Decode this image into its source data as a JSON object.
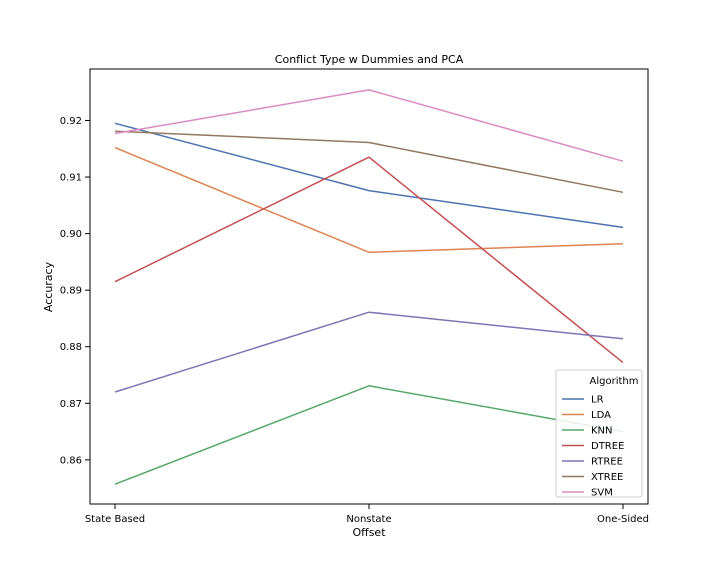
{
  "chart_data": {
    "type": "line",
    "title": "Conflict Type w Dummies and PCA",
    "xlabel": "Offset",
    "ylabel": "Accuracy",
    "categories": [
      "State Based",
      "Nonstate",
      "One-Sided"
    ],
    "ylim": [
      0.8522,
      0.9291
    ],
    "yticks": [
      0.86,
      0.87,
      0.88,
      0.89,
      0.9,
      0.91,
      0.92
    ],
    "ytick_labels": [
      "0.86",
      "0.87",
      "0.88",
      "0.89",
      "0.90",
      "0.91",
      "0.92"
    ],
    "grid": false,
    "legend": {
      "title": "Algorithm",
      "placement": "lower-right"
    },
    "series": [
      {
        "name": "LR",
        "color": "#4c72b0",
        "values": [
          0.9195,
          0.9076,
          0.9011
        ]
      },
      {
        "name": "LDA",
        "color": "#dd8452",
        "values": [
          0.9152,
          0.8967,
          0.8982
        ]
      },
      {
        "name": "KNN",
        "color": "#55a868",
        "values": [
          0.8557,
          0.8731,
          0.865
        ]
      },
      {
        "name": "DTREE",
        "color": "#c44e52",
        "values": [
          0.8915,
          0.9135,
          0.8772
        ]
      },
      {
        "name": "RTREE",
        "color": "#8172b3",
        "values": [
          0.872,
          0.8861,
          0.8814
        ]
      },
      {
        "name": "XTREE",
        "color": "#937860",
        "values": [
          0.9181,
          0.9161,
          0.9073
        ]
      },
      {
        "name": "SVM",
        "color": "#da8bc3",
        "values": [
          0.9177,
          0.9254,
          0.9128
        ]
      }
    ]
  }
}
